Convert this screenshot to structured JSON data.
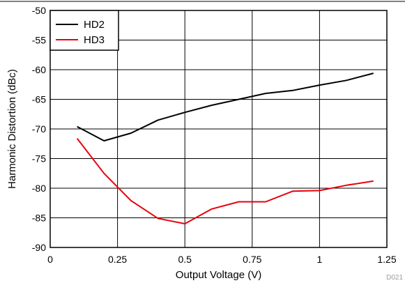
{
  "chart_data": {
    "type": "line",
    "xlabel": "Output Voltage (V)",
    "ylabel": "Harmonic Distortion (dBc)",
    "chart_id": "D021",
    "xlim": [
      0,
      1.25
    ],
    "ylim": [
      -90,
      -50
    ],
    "x_ticks": [
      0,
      0.25,
      0.5,
      0.75,
      1,
      1.25
    ],
    "x_tick_labels": [
      "0",
      "0.25",
      "0.5",
      "0.75",
      "1",
      "1.25"
    ],
    "y_ticks": [
      -50,
      -55,
      -60,
      -65,
      -70,
      -75,
      -80,
      -85,
      -90
    ],
    "y_tick_labels": [
      "-50",
      "-55",
      "-60",
      "-65",
      "-70",
      "-75",
      "-80",
      "-85",
      "-90"
    ],
    "grid": true,
    "legend_position": "top-left",
    "series": [
      {
        "name": "HD2",
        "color": "#000000",
        "x": [
          0.1,
          0.2,
          0.3,
          0.4,
          0.5,
          0.6,
          0.7,
          0.8,
          0.9,
          1.0,
          1.1,
          1.2
        ],
        "y": [
          -69.6,
          -72.0,
          -70.7,
          -68.5,
          -67.2,
          -66.0,
          -65.0,
          -64.0,
          -63.5,
          -62.6,
          -61.8,
          -60.6
        ]
      },
      {
        "name": "HD3",
        "color": "#e8000b",
        "x": [
          0.1,
          0.2,
          0.3,
          0.4,
          0.5,
          0.6,
          0.7,
          0.8,
          0.9,
          1.0,
          1.1,
          1.2
        ],
        "y": [
          -71.6,
          -77.5,
          -82.1,
          -85.1,
          -86.0,
          -83.5,
          -82.3,
          -82.3,
          -80.5,
          -80.4,
          -79.5,
          -78.8
        ]
      }
    ]
  }
}
